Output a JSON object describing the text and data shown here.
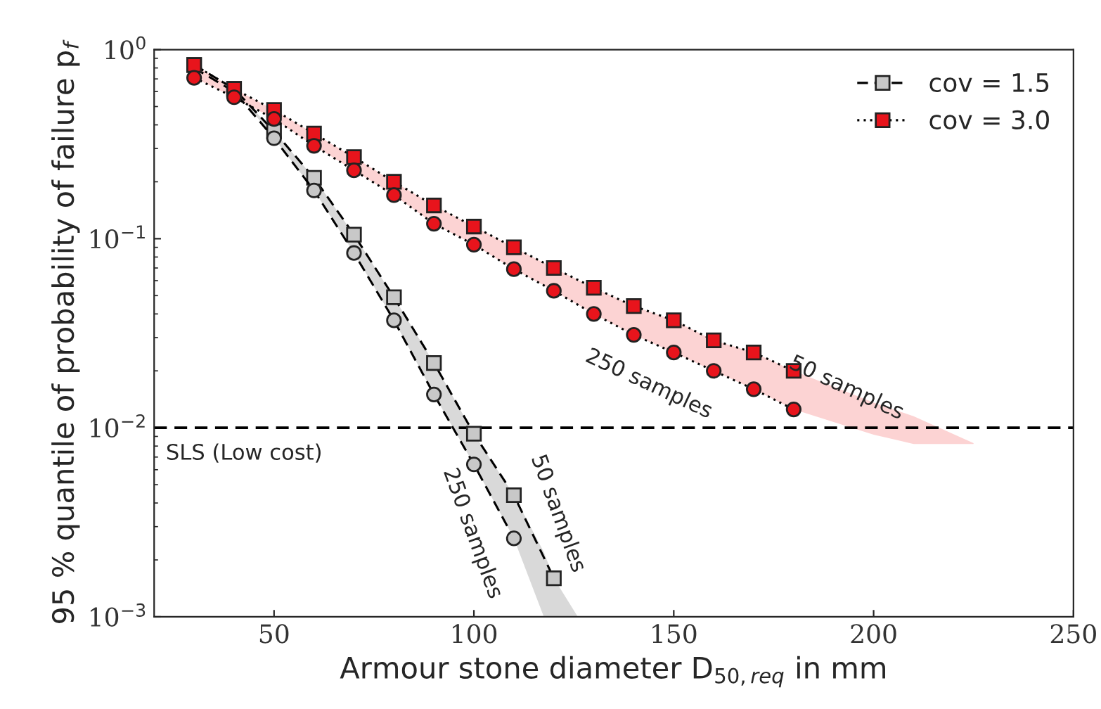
{
  "chart_data": {
    "type": "line",
    "xlabel": "Armour stone diameter D$_{50,req}$ in mm",
    "ylabel": "95 % quantile of probability of failure p$_{f}$",
    "xlim": [
      20,
      250
    ],
    "xticks": [
      50,
      100,
      150,
      200,
      250
    ],
    "ylim": [
      0.001,
      1
    ],
    "log": "y",
    "yticks": [
      {
        "value": 0.001,
        "label": "10$^{−3}$"
      },
      {
        "value": 0.01,
        "label": "10$^{−2}$"
      },
      {
        "value": 0.1,
        "label": "10$^{−1}$"
      },
      {
        "value": 1,
        "label": "10$^{0}$"
      }
    ],
    "grid": false,
    "legend": "top right",
    "series": [
      {
        "type": "area",
        "color": "#d9d9d9",
        "x": [
          30,
          40,
          50,
          60,
          70,
          80,
          90,
          100,
          110,
          117.5,
          120,
          126
        ],
        "values": [
          null,
          null,
          null,
          null,
          null,
          null,
          null,
          null,
          null,
          null,
          null,
          null
        ],
        "lower": [
          0.83,
          0.62,
          0.34,
          0.18,
          0.084,
          0.037,
          0.015,
          0.0064,
          0.0026,
          0.001,
          0.001,
          0.001
        ],
        "upper": [
          0.83,
          0.62,
          0.37,
          0.21,
          0.105,
          0.049,
          0.022,
          0.0093,
          0.0044,
          0.0022,
          0.0016,
          0.001
        ]
      },
      {
        "type": "area",
        "color": "#fcd3d3",
        "x": [
          30,
          40,
          50,
          60,
          70,
          80,
          90,
          100,
          110,
          120,
          130,
          140,
          150,
          160,
          170,
          180,
          200,
          210,
          225
        ],
        "values": [
          null,
          null,
          null,
          null,
          null,
          null,
          null,
          null,
          null,
          null,
          null,
          null,
          null,
          null,
          null,
          null,
          null,
          null,
          null
        ],
        "lower": [
          0.71,
          0.56,
          0.43,
          0.31,
          0.23,
          0.17,
          0.12,
          0.093,
          0.069,
          0.053,
          0.04,
          0.031,
          0.025,
          0.02,
          0.016,
          0.0125,
          0.0092,
          0.0082,
          0.0082
        ],
        "upper": [
          0.83,
          0.62,
          0.48,
          0.36,
          0.27,
          0.2,
          0.15,
          0.116,
          0.09,
          0.07,
          0.055,
          0.044,
          0.037,
          0.029,
          0.025,
          0.02,
          0.0136,
          0.0115,
          0.0083
        ]
      },
      {
        "name": "cov = 1.5",
        "color": "#c8c8c8",
        "marker": "square",
        "line_style": "dashed",
        "x": [
          30,
          40,
          50,
          60,
          70,
          80,
          90,
          100,
          110,
          120
        ],
        "values": [
          0.83,
          0.62,
          0.37,
          0.21,
          0.105,
          0.049,
          0.022,
          0.0093,
          0.0044,
          0.0016
        ]
      },
      {
        "color": "#c8c8c8",
        "marker": "circle",
        "line_style": "dashed",
        "x": [
          30,
          40,
          50,
          60,
          70,
          80,
          90,
          100,
          110
        ],
        "values": [
          0.8,
          0.6,
          0.34,
          0.18,
          0.084,
          0.037,
          0.015,
          0.0064,
          0.0026
        ]
      },
      {
        "name": "cov = 3.0",
        "color": "#e8141c",
        "marker": "square",
        "line_style": "dotted",
        "x": [
          30,
          40,
          50,
          60,
          70,
          80,
          90,
          100,
          110,
          120,
          130,
          140,
          150,
          160,
          170,
          180
        ],
        "values": [
          0.83,
          0.62,
          0.48,
          0.36,
          0.27,
          0.2,
          0.15,
          0.116,
          0.09,
          0.07,
          0.055,
          0.044,
          0.037,
          0.029,
          0.025,
          0.02
        ]
      },
      {
        "color": "#e8141c",
        "marker": "circle",
        "line_style": "dotted",
        "x": [
          30,
          40,
          50,
          60,
          70,
          80,
          90,
          100,
          110,
          120,
          130,
          140,
          150,
          160,
          170,
          180
        ],
        "values": [
          0.71,
          0.56,
          0.43,
          0.31,
          0.23,
          0.17,
          0.12,
          0.093,
          0.069,
          0.053,
          0.04,
          0.031,
          0.025,
          0.02,
          0.016,
          0.0125
        ]
      }
    ],
    "ref_lines": [
      {
        "axis": "y",
        "value": 0.01,
        "label": "SLS (Low cost)",
        "color": "#000000",
        "line_style": "dashed"
      }
    ],
    "annotations": [
      "50 samples",
      "250 samples",
      "50 samples",
      "250 samples"
    ]
  }
}
